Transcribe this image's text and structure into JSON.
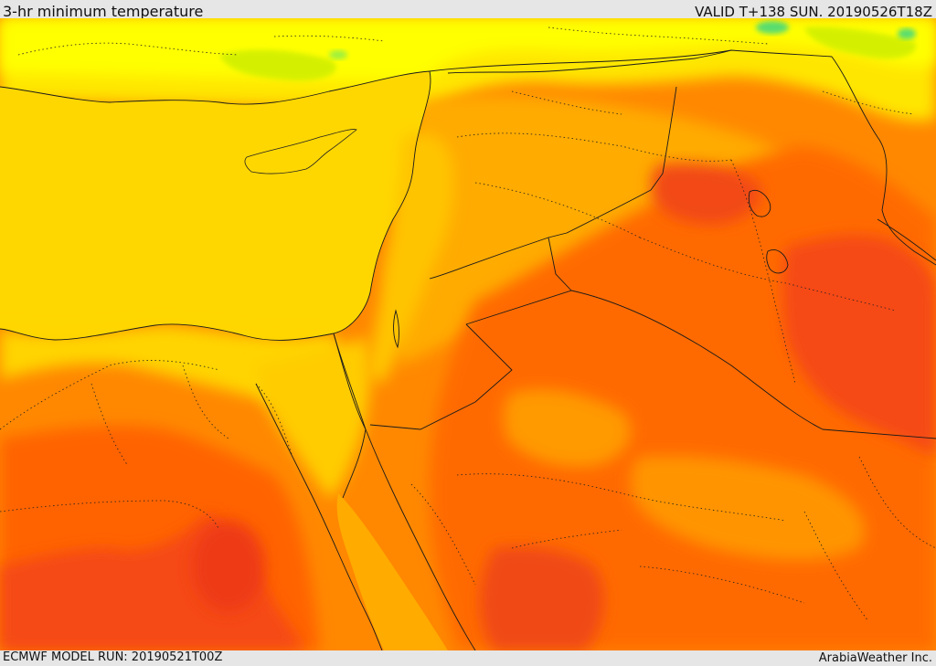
{
  "header": {
    "title": "3-hr minimum temperature",
    "valid": "VALID T+138 SUN. 20190526T18Z"
  },
  "footer": {
    "model_run": "ECMWF MODEL RUN: 20190521T00Z",
    "credit": "ArabiaWeather Inc."
  },
  "map": {
    "palette": {
      "cool_green": "#58dd70",
      "yellow_green": "#d4f000",
      "yellow": "#ffff00",
      "gold": "#ffd400",
      "orange_light": "#ffab00",
      "orange": "#ff8800",
      "orange_dark": "#ff6400",
      "red": "#f43a14"
    }
  }
}
